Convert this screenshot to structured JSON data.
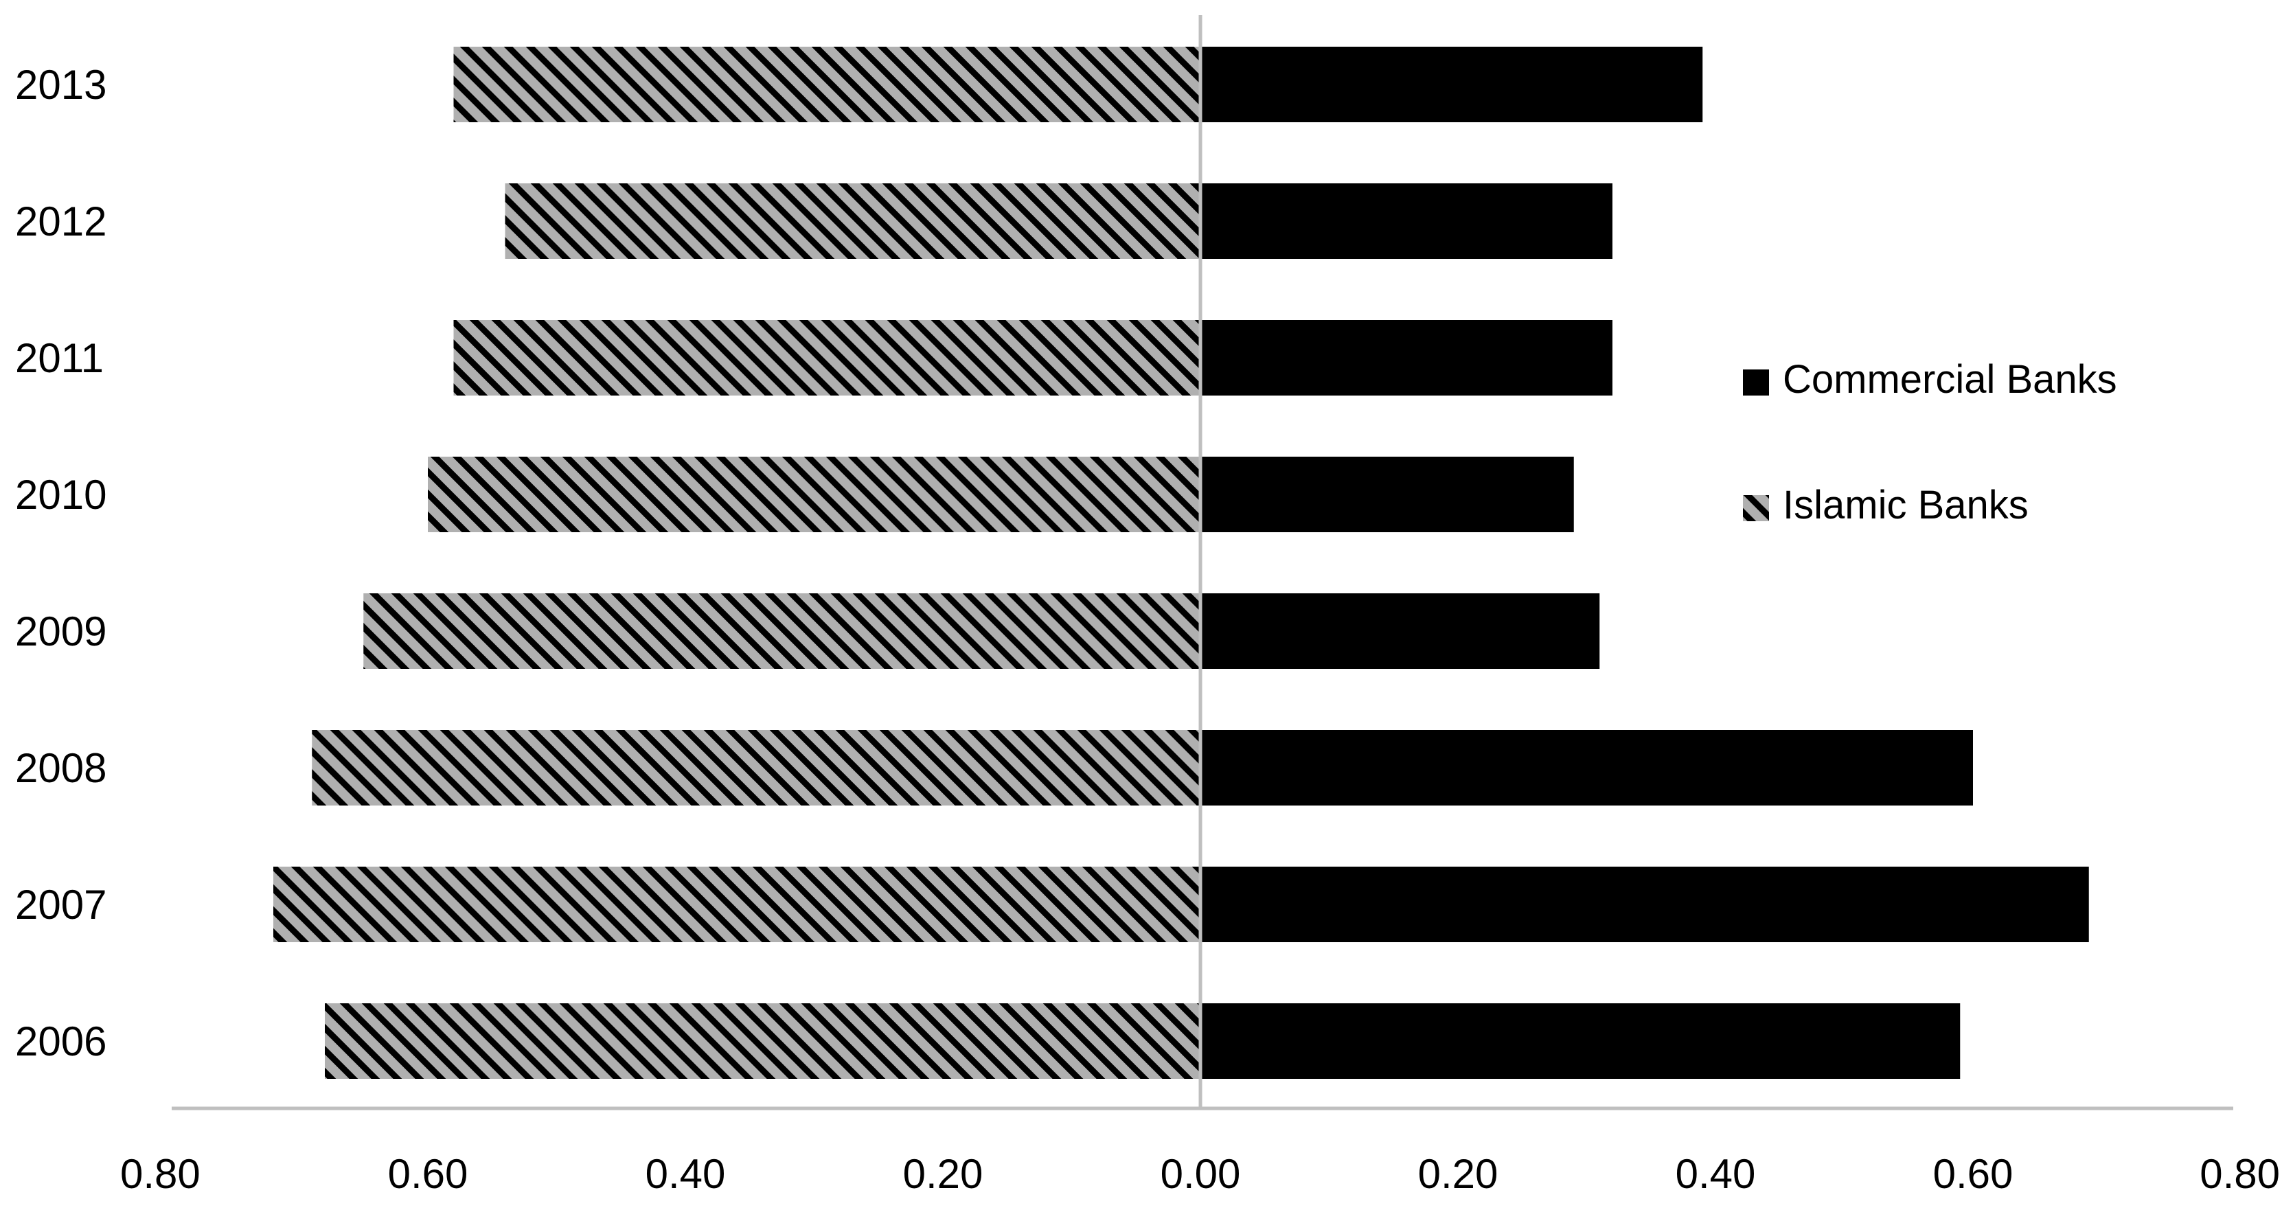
{
  "chart_data": {
    "type": "bar",
    "orientation": "horizontal-diverging",
    "title": "",
    "xlabel": "",
    "ylabel": "",
    "categories": [
      "2013",
      "2012",
      "2011",
      "2010",
      "2009",
      "2008",
      "2007",
      "2006"
    ],
    "series": [
      {
        "name": "Commercial Banks",
        "side": "right",
        "color": "#000000",
        "pattern": "solid",
        "values": [
          0.39,
          0.32,
          0.32,
          0.29,
          0.31,
          0.6,
          0.69,
          0.59
        ]
      },
      {
        "name": "Islamic Banks",
        "side": "left",
        "color": "#000000",
        "pattern": "diagonal-stripes",
        "pattern_background": "#b0b0b0",
        "values": [
          0.58,
          0.54,
          0.58,
          0.6,
          0.65,
          0.69,
          0.72,
          0.68
        ]
      }
    ],
    "xlim": [
      -0.8,
      0.8
    ],
    "x_ticks": [
      -0.8,
      -0.6,
      -0.4,
      -0.2,
      0.0,
      0.2,
      0.4,
      0.6,
      0.8
    ],
    "x_tick_labels": [
      "0.80",
      "0.60",
      "0.40",
      "0.20",
      "0.00",
      "0.20",
      "0.40",
      "0.60",
      "0.80"
    ],
    "grid": false,
    "legend_position": "right",
    "axis_color": "#bfbfbf",
    "background": "#ffffff"
  }
}
